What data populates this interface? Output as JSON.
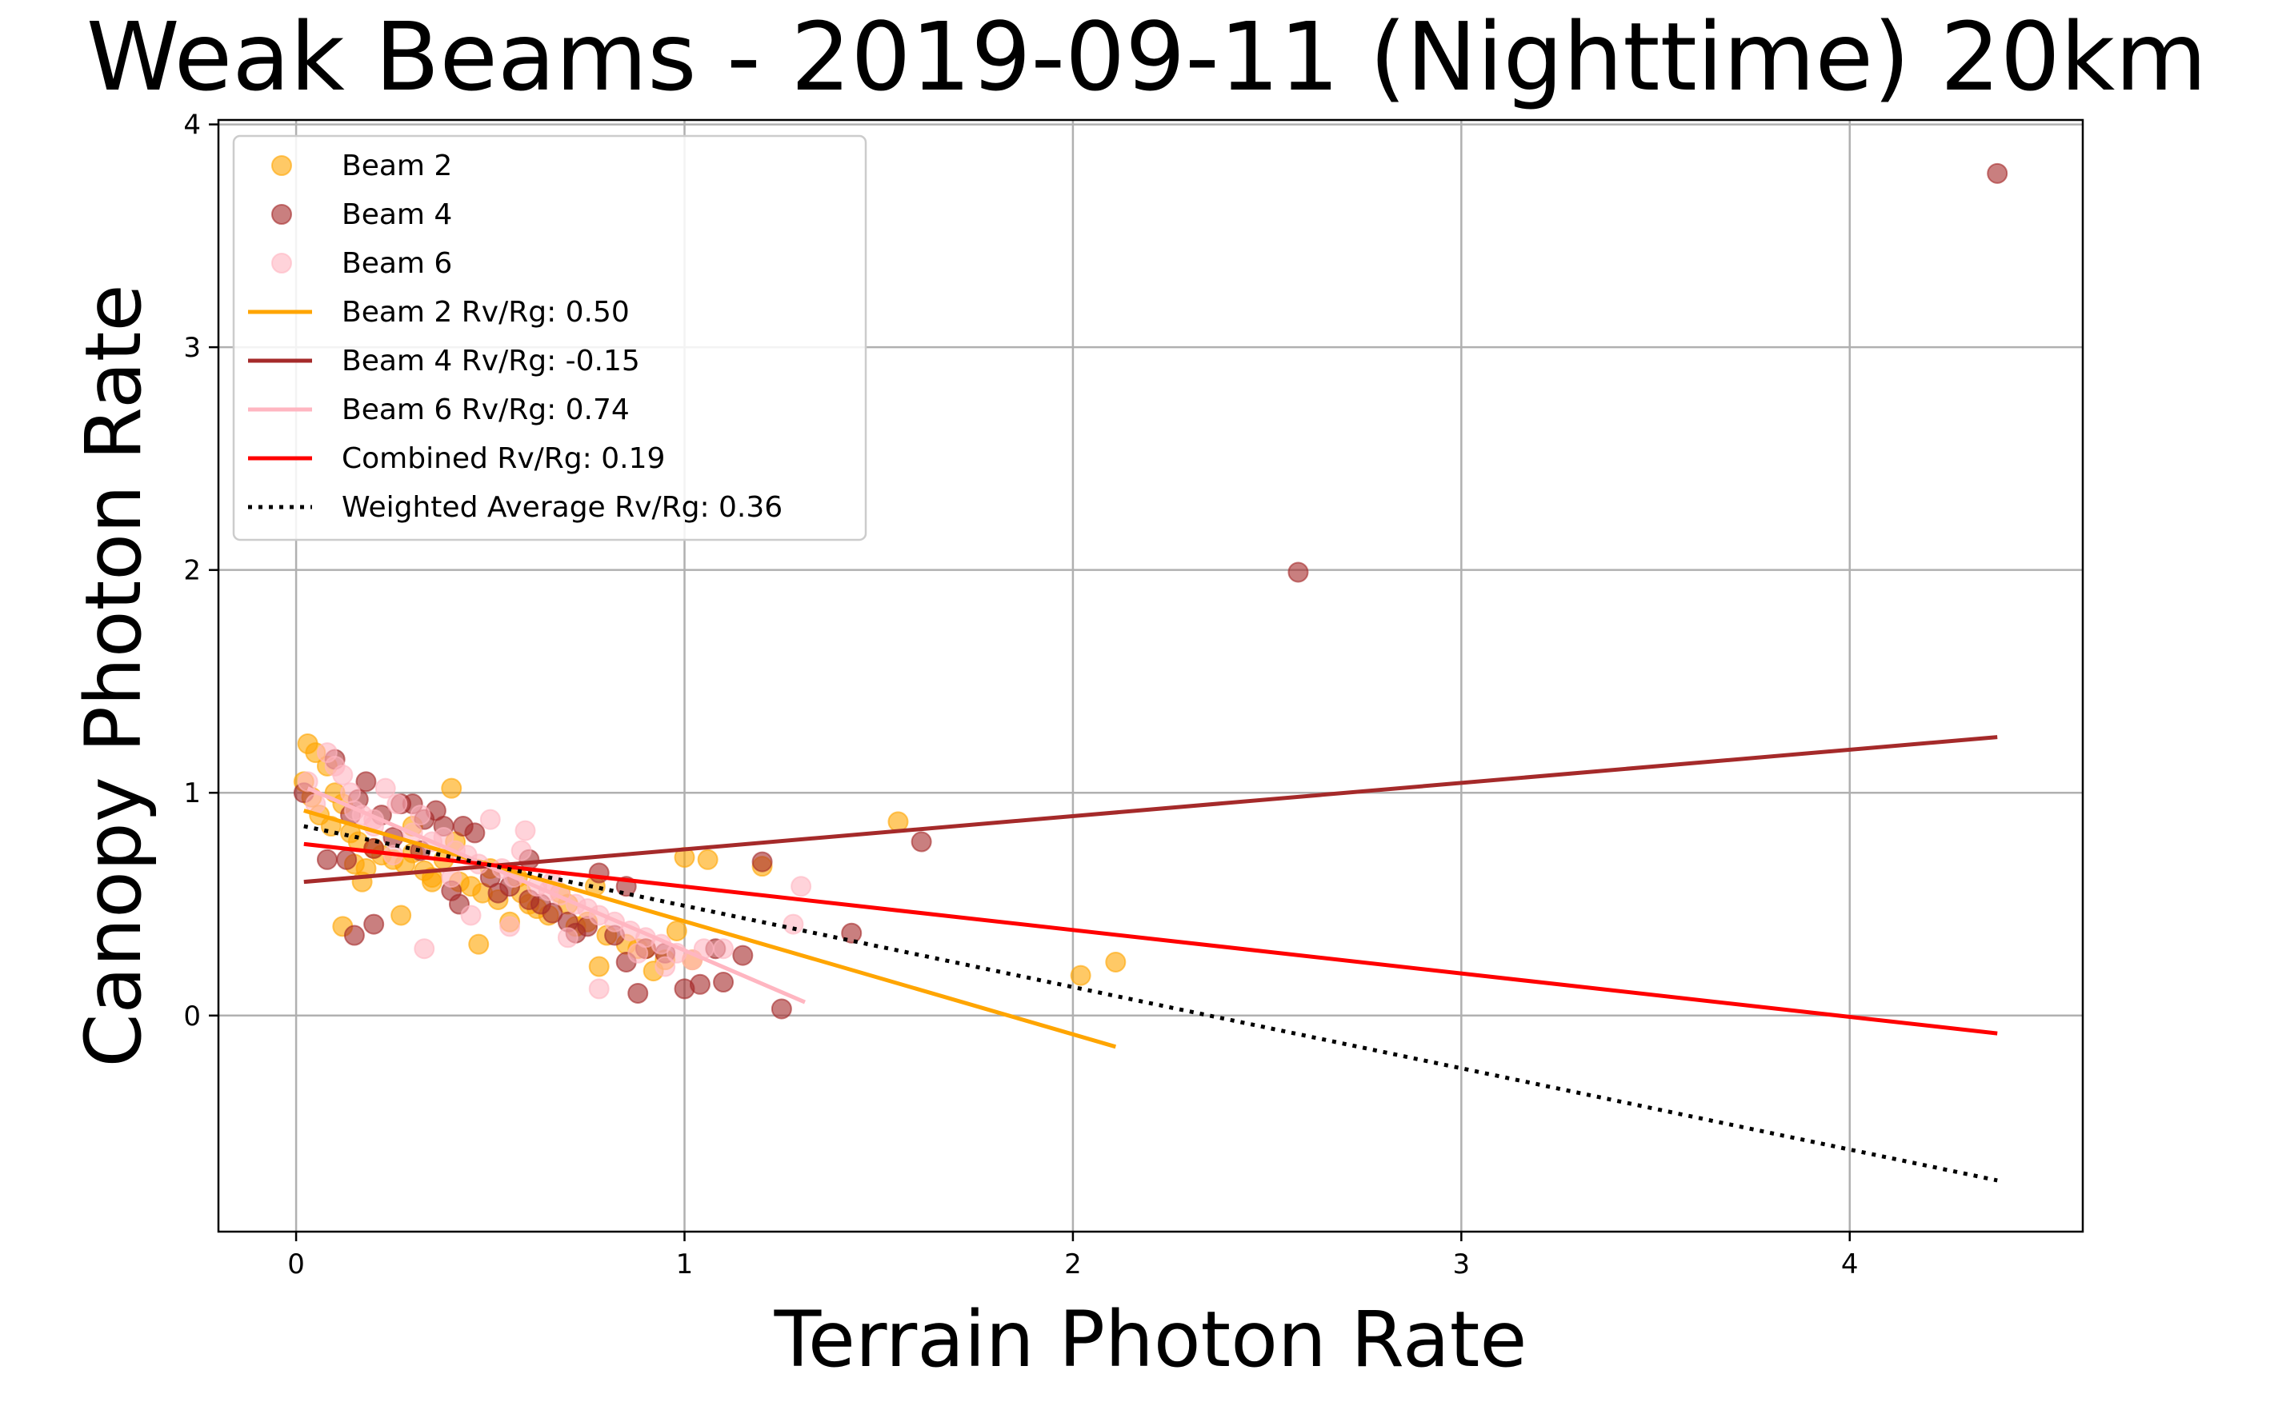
{
  "chart_data": {
    "type": "scatter",
    "title": "Weak Beams - 2019-09-11 (Nighttime) 20km",
    "xlabel": "Terrain Photon Rate",
    "ylabel": "Canopy Photon Rate",
    "xlim": [
      -0.2,
      4.6
    ],
    "ylim": [
      -0.97,
      4.02
    ],
    "xticks": [
      0,
      1,
      2,
      3,
      4
    ],
    "yticks": [
      0,
      1,
      2,
      3,
      4
    ],
    "grid": true,
    "legend_position": "top-left",
    "colors": {
      "beam2": "#FFA500",
      "beam4": "#A52A2A",
      "beam6": "#FFB6C1",
      "combined": "#FF0000",
      "weighted": "#000000"
    },
    "series": [
      {
        "name": "Beam 2",
        "kind": "scatter",
        "color": "#FFA500",
        "x": [
          0.02,
          0.03,
          0.05,
          0.04,
          0.08,
          0.1,
          0.12,
          0.06,
          0.09,
          0.14,
          0.16,
          0.18,
          0.2,
          0.22,
          0.25,
          0.28,
          0.3,
          0.33,
          0.35,
          0.38,
          0.4,
          0.42,
          0.45,
          0.48,
          0.5,
          0.52,
          0.55,
          0.58,
          0.6,
          0.62,
          0.65,
          0.7,
          0.75,
          0.78,
          0.8,
          0.85,
          0.9,
          0.95,
          0.98,
          1.0,
          1.02,
          1.06,
          1.2,
          1.55,
          2.02,
          2.11,
          0.12,
          0.17,
          0.47,
          0.27,
          0.57,
          0.77,
          0.92,
          0.15,
          0.3,
          0.41,
          0.35,
          0.68,
          0.72,
          0.88
        ],
        "y": [
          1.05,
          1.22,
          1.18,
          0.98,
          1.12,
          1.0,
          0.95,
          0.9,
          0.85,
          0.82,
          0.78,
          0.66,
          0.75,
          0.72,
          0.7,
          0.68,
          0.85,
          0.65,
          0.62,
          0.7,
          1.02,
          0.6,
          0.58,
          0.55,
          0.66,
          0.52,
          0.42,
          0.55,
          0.5,
          0.48,
          0.45,
          0.5,
          0.42,
          0.22,
          0.36,
          0.32,
          0.3,
          0.25,
          0.38,
          0.71,
          0.25,
          0.7,
          0.67,
          0.87,
          0.18,
          0.24,
          0.4,
          0.6,
          0.32,
          0.45,
          0.62,
          0.58,
          0.2,
          0.68,
          0.73,
          0.78,
          0.6,
          0.55,
          0.4,
          0.3
        ]
      },
      {
        "name": "Beam 4",
        "kind": "scatter",
        "color": "#A52A2A",
        "x": [
          0.02,
          0.1,
          0.13,
          0.15,
          0.18,
          0.2,
          0.22,
          0.25,
          0.3,
          0.33,
          0.36,
          0.4,
          0.43,
          0.46,
          0.5,
          0.55,
          0.6,
          0.63,
          0.66,
          0.7,
          0.75,
          0.78,
          0.82,
          0.85,
          0.88,
          0.9,
          0.95,
          1.0,
          1.04,
          1.08,
          1.1,
          1.15,
          1.2,
          1.25,
          1.43,
          1.61,
          2.58,
          4.38,
          0.08,
          0.16,
          0.32,
          0.38,
          0.52,
          0.72,
          0.85,
          0.42,
          0.27,
          0.6,
          0.14,
          0.2
        ],
        "y": [
          1.0,
          1.15,
          0.7,
          0.36,
          1.05,
          0.41,
          0.9,
          0.8,
          0.95,
          0.88,
          0.92,
          0.56,
          0.85,
          0.82,
          0.62,
          0.58,
          0.52,
          0.5,
          0.46,
          0.42,
          0.4,
          0.64,
          0.36,
          0.58,
          0.1,
          0.3,
          0.28,
          0.12,
          0.14,
          0.3,
          0.15,
          0.27,
          0.69,
          0.03,
          0.37,
          0.78,
          1.99,
          3.78,
          0.7,
          0.97,
          0.74,
          0.85,
          0.55,
          0.37,
          0.24,
          0.5,
          0.95,
          0.7,
          0.9,
          0.75
        ]
      },
      {
        "name": "Beam 6",
        "kind": "scatter",
        "color": "#FFB6C1",
        "x": [
          0.03,
          0.05,
          0.08,
          0.1,
          0.12,
          0.14,
          0.17,
          0.2,
          0.23,
          0.26,
          0.3,
          0.32,
          0.35,
          0.38,
          0.41,
          0.44,
          0.47,
          0.5,
          0.53,
          0.56,
          0.59,
          0.62,
          0.65,
          0.68,
          0.72,
          0.75,
          0.78,
          0.82,
          0.86,
          0.9,
          0.94,
          0.98,
          1.02,
          1.1,
          1.3,
          0.33,
          0.58,
          0.45,
          0.78,
          0.25,
          0.66,
          0.88,
          0.55,
          0.4,
          0.7,
          0.15,
          0.95,
          1.05,
          1.28,
          0.2
        ],
        "y": [
          1.05,
          0.95,
          1.18,
          1.12,
          1.08,
          1.0,
          0.9,
          0.88,
          1.02,
          0.95,
          0.82,
          0.9,
          0.78,
          0.8,
          0.74,
          0.72,
          0.68,
          0.88,
          0.66,
          0.62,
          0.83,
          0.58,
          0.56,
          0.54,
          0.5,
          0.48,
          0.45,
          0.42,
          0.38,
          0.35,
          0.32,
          0.28,
          0.25,
          0.3,
          0.58,
          0.3,
          0.74,
          0.45,
          0.12,
          0.72,
          0.6,
          0.28,
          0.4,
          0.62,
          0.35,
          0.92,
          0.22,
          0.3,
          0.41,
          0.85
        ]
      },
      {
        "name": "Beam 2 Rv/Rg: 0.50",
        "kind": "line",
        "color": "#FFA500",
        "x": [
          0.02,
          2.11
        ],
        "y": [
          0.92,
          -0.14
        ]
      },
      {
        "name": "Beam 4 Rv/Rg: -0.15",
        "kind": "line",
        "color": "#A52A2A",
        "x": [
          0.02,
          4.38
        ],
        "y": [
          0.6,
          1.25
        ]
      },
      {
        "name": "Beam 6 Rv/Rg: 0.74",
        "kind": "line",
        "color": "#FFB6C1",
        "x": [
          0.03,
          1.31
        ],
        "y": [
          1.02,
          0.06
        ]
      },
      {
        "name": "Combined Rv/Rg: 0.19",
        "kind": "line",
        "color": "#FF0000",
        "x": [
          0.02,
          4.38
        ],
        "y": [
          0.77,
          -0.08
        ]
      },
      {
        "name": "Weighted Average Rv/Rg: 0.36",
        "kind": "line",
        "dash": "dotted",
        "color": "#000000",
        "x": [
          0.02,
          4.38
        ],
        "y": [
          0.85,
          -0.74
        ]
      }
    ]
  }
}
